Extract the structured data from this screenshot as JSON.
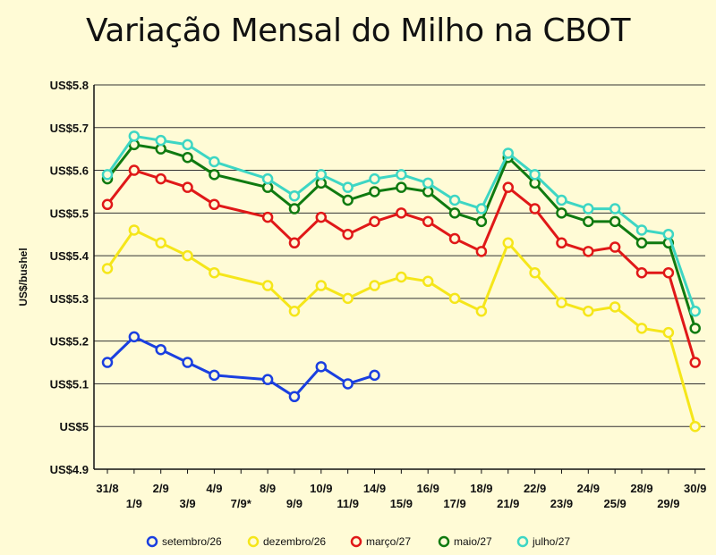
{
  "chart_data": {
    "type": "line",
    "title": "Variação Mensal do Milho na CBOT",
    "ylabel": "US$/bushel",
    "xlabel": "",
    "ylim": [
      4.9,
      5.8
    ],
    "y_ticks": [
      4.9,
      5.0,
      5.1,
      5.2,
      5.3,
      5.4,
      5.5,
      5.6,
      5.7,
      5.8
    ],
    "y_tick_labels": [
      "US$4.9",
      "US$5",
      "US$5.1",
      "US$5.2",
      "US$5.3",
      "US$5.4",
      "US$5.5",
      "US$5.6",
      "US$5.7",
      "US$5.8"
    ],
    "categories": [
      "31/8",
      "1/9",
      "2/9",
      "3/9",
      "4/9",
      "7/9*",
      "8/9",
      "9/9",
      "10/9",
      "11/9",
      "14/9",
      "15/9",
      "16/9",
      "17/9",
      "18/9",
      "21/9",
      "22/9",
      "23/9",
      "24/9",
      "25/9",
      "28/9",
      "29/9",
      "30/9"
    ],
    "grid": true,
    "legend_position": "bottom",
    "series": [
      {
        "name": "setembro/26",
        "color": "#1a3fe0",
        "values": [
          5.15,
          5.21,
          5.18,
          5.15,
          5.12,
          null,
          5.11,
          5.07,
          5.14,
          5.1,
          5.12,
          null,
          null,
          null,
          null,
          null,
          null,
          null,
          null,
          null,
          null,
          null,
          null
        ]
      },
      {
        "name": "dezembro/26",
        "color": "#f5e61a",
        "values": [
          5.37,
          5.46,
          5.43,
          5.4,
          5.36,
          null,
          5.33,
          5.27,
          5.33,
          5.3,
          5.33,
          5.35,
          5.34,
          5.3,
          5.27,
          5.43,
          5.36,
          5.29,
          5.27,
          5.28,
          5.23,
          5.22,
          5.0
        ]
      },
      {
        "name": "março/27",
        "color": "#e01818",
        "values": [
          5.52,
          5.6,
          5.58,
          5.56,
          5.52,
          null,
          5.49,
          5.43,
          5.49,
          5.45,
          5.48,
          5.5,
          5.48,
          5.44,
          5.41,
          5.56,
          5.51,
          5.43,
          5.41,
          5.42,
          5.36,
          5.36,
          5.15
        ]
      },
      {
        "name": "maio/27",
        "color": "#0f7a10",
        "values": [
          5.58,
          5.66,
          5.65,
          5.63,
          5.59,
          null,
          5.56,
          5.51,
          5.57,
          5.53,
          5.55,
          5.56,
          5.55,
          5.5,
          5.48,
          5.63,
          5.57,
          5.5,
          5.48,
          5.48,
          5.43,
          5.43,
          5.23
        ]
      },
      {
        "name": "julho/27",
        "color": "#3dd6c4",
        "values": [
          5.59,
          5.68,
          5.67,
          5.66,
          5.62,
          null,
          5.58,
          5.54,
          5.59,
          5.56,
          5.58,
          5.59,
          5.57,
          5.53,
          5.51,
          5.64,
          5.59,
          5.53,
          5.51,
          5.51,
          5.46,
          5.45,
          5.27
        ]
      }
    ]
  }
}
